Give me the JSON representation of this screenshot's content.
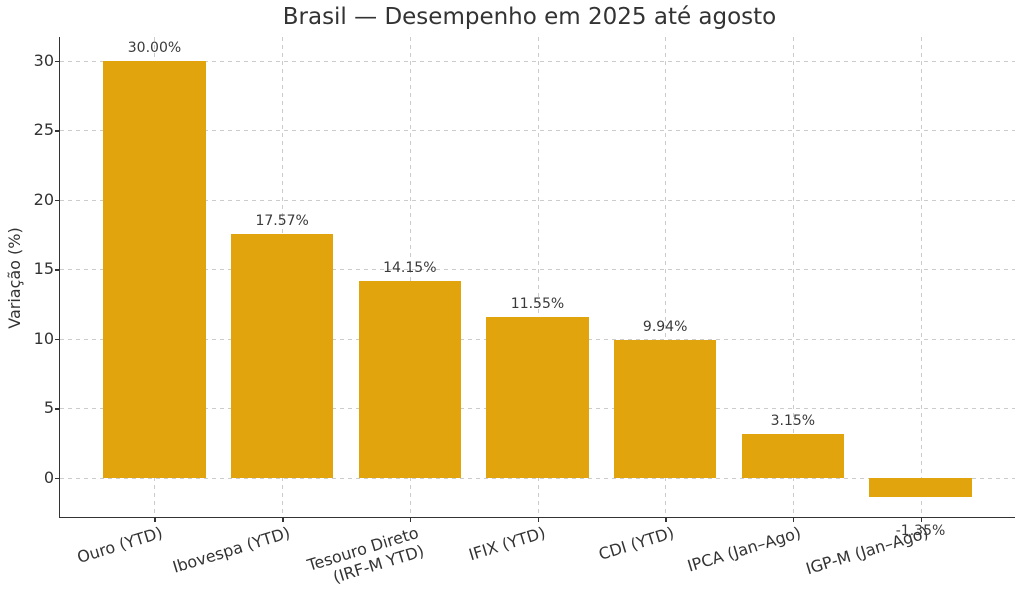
{
  "page": {
    "background": "#ffffff"
  },
  "chart_data": {
    "type": "bar",
    "title": "Brasil — Desempenho em 2025 até agosto",
    "ylabel": "Variação (%)",
    "xlabel": "",
    "categories": [
      "Ouro (YTD)",
      "Ibovespa (YTD)",
      "Tesouro Direto\n(IRF-M YTD)",
      "IFIX (YTD)",
      "CDI (YTD)",
      "IPCA (Jan–Ago)",
      "IGP-M (Jan–Ago)"
    ],
    "values": [
      30.0,
      17.57,
      14.15,
      11.55,
      9.94,
      3.15,
      -1.35
    ],
    "value_labels": [
      "30.00%",
      "17.57%",
      "14.15%",
      "11.55%",
      "9.94%",
      "3.15%",
      "-1.35%"
    ],
    "yticks": [
      0,
      5,
      10,
      15,
      20,
      25,
      30
    ],
    "ylim": [
      -2.8,
      31.7
    ],
    "xlim": [
      -0.74,
      6.74
    ],
    "bar_width": 0.8,
    "xtick_rotation_deg": 17,
    "grid": true,
    "legend": "none",
    "colors": {
      "bar": "#E1A40D",
      "grid": "#cccccc",
      "axis": "#333333",
      "text": "#333333",
      "value_label": "#3a3a3a"
    }
  }
}
